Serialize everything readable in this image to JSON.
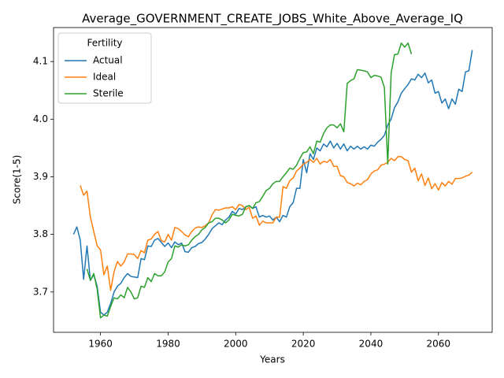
{
  "chart_data": {
    "type": "line",
    "title": "Average_GOVERNMENT_CREATE_JOBS_White_Above_Average_IQ",
    "x_label": "Years",
    "y_label": "Score(1-5)",
    "legend_title": "Fertility",
    "legend_position": "upper left",
    "x": [
      1952,
      1953,
      1954,
      1955,
      1956,
      1957,
      1958,
      1959,
      1960,
      1961,
      1962,
      1963,
      1964,
      1965,
      1966,
      1967,
      1968,
      1969,
      1970,
      1971,
      1972,
      1973,
      1974,
      1975,
      1976,
      1977,
      1978,
      1979,
      1980,
      1981,
      1982,
      1983,
      1984,
      1985,
      1986,
      1987,
      1988,
      1989,
      1990,
      1991,
      1992,
      1993,
      1994,
      1995,
      1996,
      1997,
      1998,
      1999,
      2000,
      2001,
      2002,
      2003,
      2004,
      2005,
      2006,
      2007,
      2008,
      2009,
      2010,
      2011,
      2012,
      2013,
      2014,
      2015,
      2016,
      2017,
      2018,
      2019,
      2020,
      2021,
      2022,
      2023,
      2024,
      2025,
      2026,
      2027,
      2028,
      2029,
      2030,
      2031,
      2032,
      2033,
      2034,
      2035,
      2036,
      2037,
      2038,
      2039,
      2040,
      2041,
      2042,
      2043,
      2044,
      2045,
      2046,
      2047,
      2048,
      2049,
      2050,
      2051,
      2052,
      2053,
      2054,
      2055,
      2056,
      2057,
      2058,
      2059,
      2060,
      2061,
      2062,
      2063,
      2064,
      2065,
      2066,
      2067,
      2068,
      2069,
      2070
    ],
    "series": [
      {
        "name": "Actual",
        "color": "#1f77b4",
        "values": [
          3.8,
          3.813,
          3.79,
          3.722,
          3.78,
          3.72,
          3.73,
          3.71,
          3.665,
          3.66,
          3.665,
          3.68,
          3.7,
          3.71,
          3.715,
          3.725,
          3.732,
          3.727,
          3.726,
          3.725,
          3.758,
          3.756,
          3.78,
          3.779,
          3.79,
          3.793,
          3.786,
          3.779,
          3.785,
          3.777,
          3.787,
          3.782,
          3.785,
          3.77,
          3.769,
          3.777,
          3.779,
          3.784,
          3.786,
          3.792,
          3.8,
          3.81,
          3.815,
          3.82,
          3.817,
          3.825,
          3.83,
          3.84,
          3.835,
          3.845,
          3.843,
          3.848,
          3.85,
          3.845,
          3.848,
          3.83,
          3.833,
          3.83,
          3.832,
          3.825,
          3.83,
          3.822,
          3.833,
          3.83,
          3.848,
          3.855,
          3.88,
          3.88,
          3.93,
          3.907,
          3.94,
          3.93,
          3.95,
          3.945,
          3.957,
          3.952,
          3.962,
          3.95,
          3.958,
          3.948,
          3.957,
          3.945,
          3.953,
          3.948,
          3.953,
          3.948,
          3.952,
          3.948,
          3.955,
          3.953,
          3.96,
          3.965,
          3.972,
          3.99,
          4.0,
          4.02,
          4.03,
          4.045,
          4.053,
          4.06,
          4.07,
          4.068,
          4.078,
          4.072,
          4.08,
          4.063,
          4.068,
          4.045,
          4.048,
          4.028,
          4.035,
          4.018,
          4.035,
          4.026,
          4.052,
          4.048,
          4.082,
          4.084,
          4.12
        ]
      },
      {
        "name": "Ideal",
        "color": "#ff7f0e",
        "values": [
          null,
          null,
          3.885,
          3.868,
          3.875,
          3.83,
          3.805,
          3.78,
          3.773,
          3.73,
          3.745,
          3.703,
          3.735,
          3.753,
          3.745,
          3.752,
          3.766,
          3.766,
          3.765,
          3.758,
          3.772,
          3.768,
          3.79,
          3.792,
          3.8,
          3.805,
          3.789,
          3.787,
          3.8,
          3.79,
          3.812,
          3.81,
          3.805,
          3.799,
          3.796,
          3.805,
          3.811,
          3.813,
          3.812,
          3.815,
          3.82,
          3.834,
          3.843,
          3.842,
          3.844,
          3.846,
          3.846,
          3.848,
          3.843,
          3.852,
          3.85,
          3.843,
          3.847,
          3.828,
          3.832,
          3.816,
          3.823,
          3.82,
          3.82,
          3.82,
          3.83,
          3.83,
          3.883,
          3.88,
          3.893,
          3.898,
          3.91,
          3.915,
          3.922,
          3.925,
          3.93,
          3.925,
          3.932,
          3.922,
          3.927,
          3.925,
          3.93,
          3.918,
          3.918,
          3.902,
          3.9,
          3.89,
          3.888,
          3.884,
          3.889,
          3.886,
          3.892,
          3.895,
          3.905,
          3.91,
          3.912,
          3.92,
          3.922,
          3.925,
          3.932,
          3.928,
          3.935,
          3.935,
          3.93,
          3.928,
          3.908,
          3.915,
          3.893,
          3.905,
          3.885,
          3.898,
          3.879,
          3.888,
          3.877,
          3.89,
          3.884,
          3.892,
          3.887,
          3.897,
          3.897,
          3.898,
          3.901,
          3.903,
          3.908
        ]
      },
      {
        "name": "Sterile",
        "color": "#2ca02c",
        "values": [
          null,
          null,
          null,
          null,
          3.74,
          3.72,
          3.732,
          3.705,
          3.655,
          3.66,
          3.658,
          3.675,
          3.69,
          3.688,
          3.695,
          3.69,
          3.708,
          3.7,
          3.688,
          3.69,
          3.71,
          3.708,
          3.725,
          3.718,
          3.732,
          3.728,
          3.728,
          3.735,
          3.752,
          3.758,
          3.78,
          3.778,
          3.782,
          3.78,
          3.782,
          3.79,
          3.796,
          3.8,
          3.808,
          3.812,
          3.82,
          3.822,
          3.828,
          3.828,
          3.825,
          3.82,
          3.825,
          3.835,
          3.833,
          3.832,
          3.835,
          3.848,
          3.85,
          3.845,
          3.855,
          3.857,
          3.866,
          3.876,
          3.88,
          3.888,
          3.892,
          3.892,
          3.9,
          3.907,
          3.915,
          3.913,
          3.92,
          3.932,
          3.942,
          3.943,
          3.952,
          3.94,
          3.962,
          3.96,
          3.975,
          3.985,
          3.99,
          3.99,
          3.985,
          3.992,
          3.978,
          4.062,
          4.067,
          4.07,
          4.086,
          4.085,
          4.084,
          4.082,
          4.072,
          4.076,
          4.075,
          4.073,
          4.055,
          3.922,
          4.08,
          4.112,
          4.113,
          4.132,
          4.125,
          4.132,
          4.113,
          null,
          null,
          null,
          null,
          null,
          null,
          null,
          null,
          null,
          null,
          null,
          null,
          null,
          null,
          null,
          null,
          null,
          null
        ]
      }
    ],
    "xlim": [
      1946.1,
      2075.9
    ],
    "ylim": [
      3.63,
      4.159
    ],
    "xticks": [
      1960,
      1980,
      2000,
      2020,
      2040,
      2060
    ],
    "yticks": [
      3.7,
      3.8,
      3.9,
      {
        "value": 4,
        "label": "4.0"
      },
      4.1
    ],
    "grid": false
  }
}
